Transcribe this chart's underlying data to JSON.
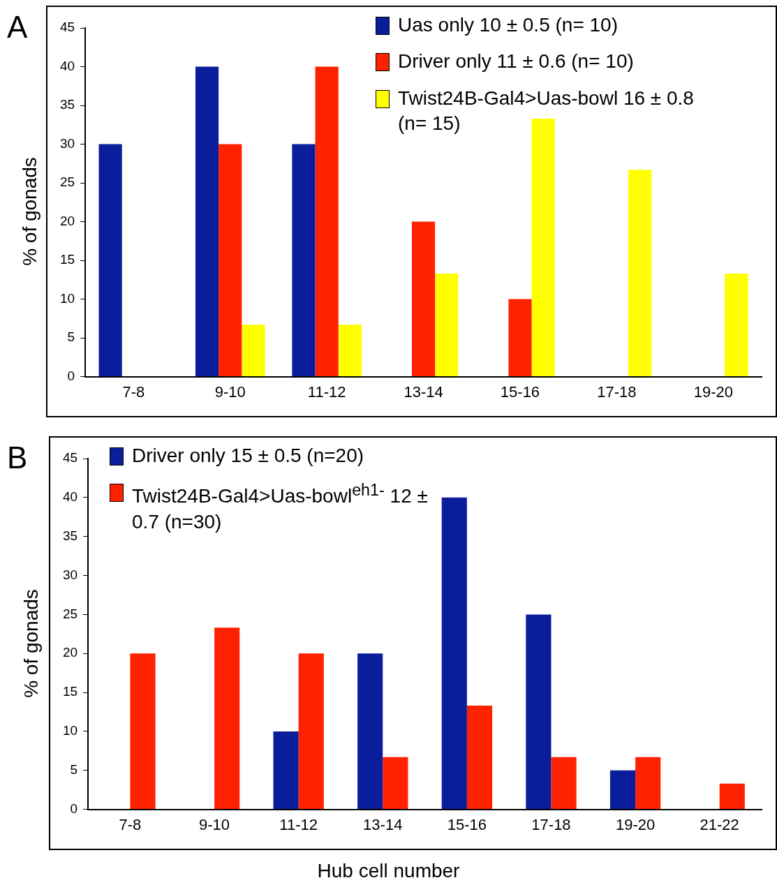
{
  "chart_data": [
    {
      "type": "bar",
      "ylabel": "% of gonads",
      "annotations": [
        "A"
      ],
      "categories": [
        "7-8",
        "9-10",
        "11-12",
        "13-14",
        "15-16",
        "17-18",
        "19-20"
      ],
      "series": [
        {
          "name": "Uas only 10 ± 0.5 (n= 10)",
          "color": "#0a1e9c",
          "values": [
            30,
            40,
            30,
            0,
            0,
            0,
            0
          ]
        },
        {
          "name": "Driver only 11 ± 0.6 (n= 10)",
          "color": "#ff2200",
          "values": [
            0,
            30,
            40,
            20,
            10,
            0,
            0
          ]
        },
        {
          "name": "Twist24B-Gal4>Uas-bowl 16 ± 0.8 (n= 15)",
          "color": "#ffff00",
          "values": [
            0,
            6.7,
            6.7,
            13.3,
            33.3,
            26.7,
            13.3
          ]
        }
      ],
      "ylim": [
        0,
        45
      ],
      "yticks": [
        0,
        5,
        10,
        15,
        20,
        25,
        30,
        35,
        40,
        45
      ],
      "grid": false,
      "legend": "top right"
    },
    {
      "type": "bar",
      "ylabel": "% of gonads",
      "xlabel": "Hub cell number",
      "annotations": [
        "B"
      ],
      "categories": [
        "7-8",
        "9-10",
        "11-12",
        "13-14",
        "15-16",
        "17-18",
        "19-20",
        "21-22"
      ],
      "series": [
        {
          "name": "Driver only 15 ± 0.5  (n=20)",
          "color": "#0a1e9c",
          "values": [
            0,
            0,
            10,
            20,
            40,
            25,
            5,
            0
          ]
        },
        {
          "name": "Twist24B-Gal4>Uas-bowl$^{eh1-}$ 12 ± 0.7  (n=30)",
          "color": "#ff2200",
          "values": [
            20,
            23.3,
            20,
            6.7,
            13.3,
            6.7,
            6.7,
            3.3
          ]
        }
      ],
      "ylim": [
        0,
        45
      ],
      "yticks": [
        0,
        5,
        10,
        15,
        20,
        25,
        30,
        35,
        40,
        45
      ],
      "grid": false,
      "legend": "top left"
    }
  ]
}
